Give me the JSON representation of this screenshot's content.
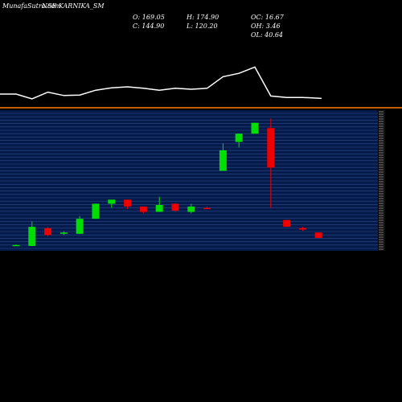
{
  "header": {
    "watermark": "MunafaSutra.com",
    "ticker": "NSE KARNIKA_SM"
  },
  "ohlc_readout": {
    "o": "O: 169.05",
    "h": "H: 174.90",
    "oc": "OC: 16.67",
    "c": "C: 144.90",
    "l": "L: 120.20",
    "oh": "OH: 3.46",
    "ol": "OL: 40.64"
  },
  "colors": {
    "background": "#000000",
    "price_panel": "#041a4a",
    "grid_line": "#2c4a8c",
    "up_candle": "#00dd00",
    "down_candle": "#ee0000",
    "volume_line": "#ffffff",
    "separator": "#ff8000"
  },
  "chart_data": [
    {
      "type": "line",
      "title": "",
      "series": [
        {
          "values": [
            0.3,
            0.2,
            0.34,
            0.27,
            0.28,
            0.38,
            0.43,
            0.45,
            0.42,
            0.38,
            0.42,
            0.4,
            0.42,
            0.66,
            0.73,
            0.86,
            0.26,
            0.23,
            0.23,
            0.21
          ]
        }
      ],
      "ylim": [
        0,
        1
      ]
    },
    {
      "type": "candlestick",
      "title": "",
      "ylim": [
        94,
        180
      ],
      "candles": [
        {
          "o": 97.3,
          "h": 97.9,
          "l": 97.3,
          "c": 97.6
        },
        {
          "o": 97.0,
          "h": 112.0,
          "l": 97.0,
          "c": 108.7
        },
        {
          "o": 107.9,
          "h": 108.7,
          "l": 102.9,
          "c": 103.6
        },
        {
          "o": 104.4,
          "h": 106.0,
          "l": 103.6,
          "c": 105.2
        },
        {
          "o": 104.4,
          "h": 115.3,
          "l": 104.4,
          "c": 113.6
        },
        {
          "o": 113.6,
          "h": 122.8,
          "l": 113.6,
          "c": 122.8
        },
        {
          "o": 122.8,
          "h": 125.3,
          "l": 120.3,
          "c": 125.3
        },
        {
          "o": 125.3,
          "h": 125.3,
          "l": 119.5,
          "c": 121.1
        },
        {
          "o": 121.1,
          "h": 121.1,
          "l": 116.9,
          "c": 117.8
        },
        {
          "o": 117.8,
          "h": 127.0,
          "l": 117.8,
          "c": 122.0
        },
        {
          "o": 122.8,
          "h": 122.8,
          "l": 117.8,
          "c": 118.6
        },
        {
          "o": 117.8,
          "h": 122.8,
          "l": 116.9,
          "c": 121.1
        },
        {
          "o": 120.3,
          "h": 121.1,
          "l": 119.5,
          "c": 119.5
        },
        {
          "o": 142.9,
          "h": 159.7,
          "l": 142.9,
          "c": 155.5
        },
        {
          "o": 160.6,
          "h": 165.6,
          "l": 157.2,
          "c": 165.6
        },
        {
          "o": 165.6,
          "h": 172.3,
          "l": 165.6,
          "c": 172.3
        },
        {
          "o": 169.05,
          "h": 174.9,
          "l": 120.2,
          "c": 144.9
        },
        {
          "o": 112.8,
          "h": 112.8,
          "l": 108.7,
          "c": 108.7
        },
        {
          "o": 107.9,
          "h": 108.7,
          "l": 106.2,
          "c": 107.0
        },
        {
          "o": 105.2,
          "h": 105.2,
          "l": 101.9,
          "c": 101.9
        }
      ]
    }
  ]
}
